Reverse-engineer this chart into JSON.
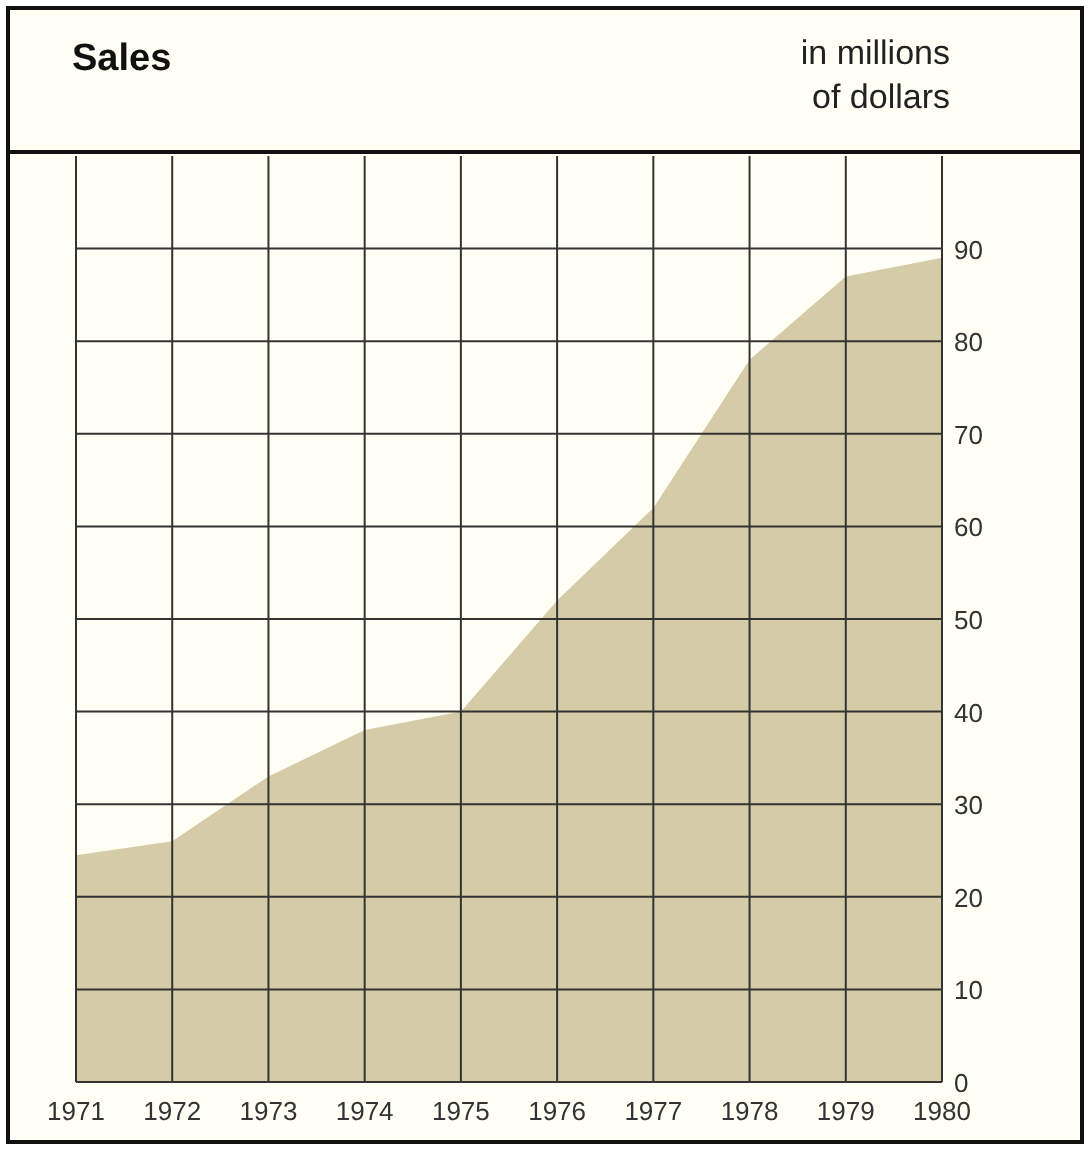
{
  "chart_data": {
    "type": "area",
    "title": "Sales",
    "subtitle": "in millions\nof dollars",
    "x": [
      1971,
      1972,
      1973,
      1974,
      1975,
      1976,
      1977,
      1978,
      1979,
      1980
    ],
    "xlim": [
      1971,
      1980
    ],
    "xticks": [
      1971,
      1972,
      1973,
      1974,
      1975,
      1976,
      1977,
      1978,
      1979,
      1980
    ],
    "series": [
      {
        "color": "#d5cba6",
        "values": [
          24.5,
          26,
          33,
          38,
          40,
          52,
          62,
          78,
          87,
          89
        ]
      }
    ],
    "ylim": [
      0,
      100
    ],
    "yticks": [
      0,
      10,
      20,
      30,
      40,
      50,
      60,
      70,
      80,
      90
    ],
    "grid": true
  }
}
